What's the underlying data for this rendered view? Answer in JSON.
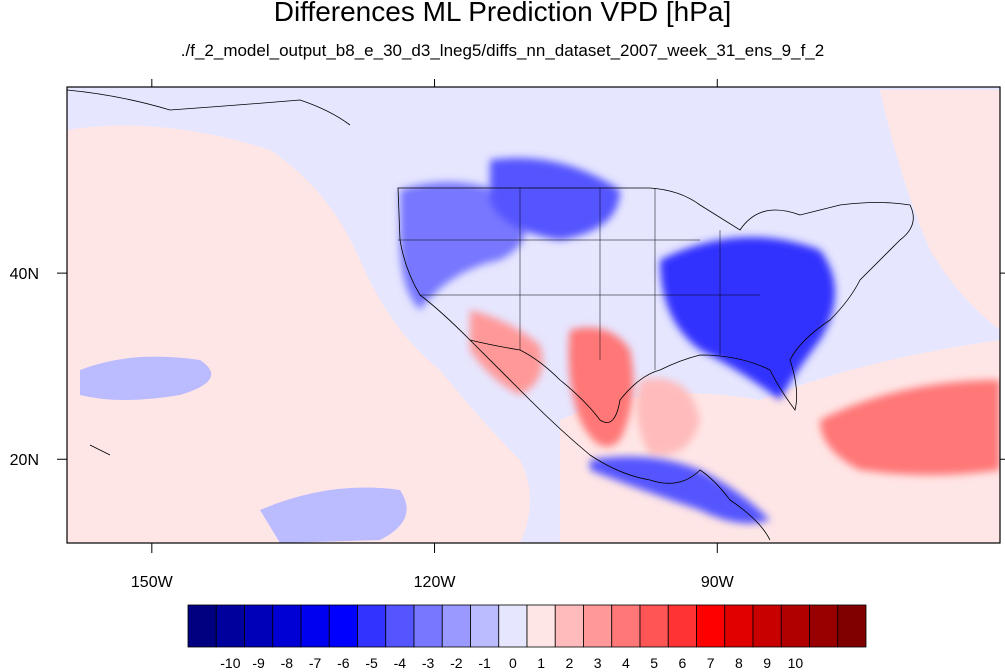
{
  "title": "Differences ML Prediction VPD [hPa]",
  "subtitle": "./f_2_model_output_b8_e_30_d3_lneg5/diffs_nn_dataset_2007_week_31_ens_9_f_2",
  "lon_ticks": [
    {
      "lon": -150,
      "label": "150W"
    },
    {
      "lon": -120,
      "label": "120W"
    },
    {
      "lon": -90,
      "label": "90W"
    }
  ],
  "lat_ticks": [
    {
      "lat": 40,
      "label": "40N"
    },
    {
      "lat": 20,
      "label": "20N"
    }
  ],
  "map_extent": {
    "lon": [
      -159,
      -60
    ],
    "lat": [
      11,
      60
    ]
  },
  "colorbar": {
    "colors": [
      "#000080",
      "#00009c",
      "#0000b8",
      "#0000d4",
      "#0000f0",
      "#0000ff",
      "#3333ff",
      "#5555ff",
      "#7777ff",
      "#9999ff",
      "#bbbbff",
      "#e6e6ff",
      "#ffe6e6",
      "#ffbbbb",
      "#ff9999",
      "#ff7777",
      "#ff5555",
      "#ff3333",
      "#ff0000",
      "#e00000",
      "#c80000",
      "#b00000",
      "#980000",
      "#800000"
    ],
    "labels": [
      "-10",
      "-9",
      "-8",
      "-7",
      "-6",
      "-5",
      "-4",
      "-3",
      "-2",
      "-1",
      "0",
      "1",
      "2",
      "3",
      "4",
      "5",
      "6",
      "7",
      "8",
      "9",
      "10"
    ]
  },
  "colors": {
    "background": "#e6e6ff",
    "frame": "#000000"
  }
}
